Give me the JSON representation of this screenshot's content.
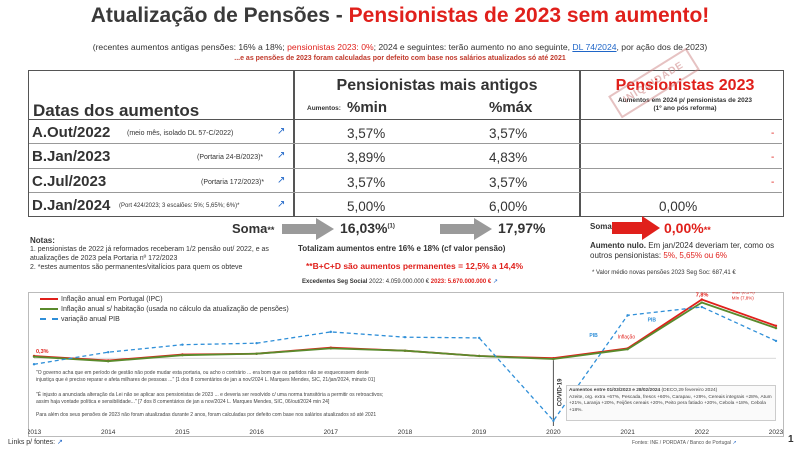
{
  "title": {
    "part1": "Atualização de Pensões - ",
    "part2": "Pensionistas de 2023 sem aumento!"
  },
  "subtitle": {
    "a": "(recentes aumentos antigas pensões: 16% a 18%; ",
    "b": "pensionistas 2023: 0%",
    "c": "; 2024 e seguintes: terão aumento no ano seguinte, ",
    "d": "DL 74/2024",
    "e": ", por ação dos de 2023)"
  },
  "subtitle2": "...e as pensões de 2023 foram calculadas por defeito com base nos salários atualizados só até 2021",
  "table": {
    "header_dates": "Datas dos aumentos",
    "header_old": "Pensionistas mais antigos",
    "header_aumentos": "Aumentos:",
    "header_min": "%min",
    "header_max": "%máx",
    "header_pens": "Pensionistas 2023",
    "header_pens_sub1": "Aumentos em 2024 p/ pensionistas de 2023",
    "header_pens_sub2": "(1º ano pós reforma)",
    "stamp": "INIQUIDADE",
    "rows": [
      {
        "label": "A.Out/2022",
        "note": "(meio mês, isolado DL 57-C/2022)",
        "min": "3,57%",
        "max": "3,57%",
        "pens": "-"
      },
      {
        "label": "B.Jan/2023",
        "note": "(Portaria 24-B/2023)*",
        "min": "3,89%",
        "max": "4,83%",
        "pens": "-"
      },
      {
        "label": "C.Jul/2023",
        "note": "(Portaria 172/2023)*",
        "min": "3,57%",
        "max": "3,57%",
        "pens": "-"
      },
      {
        "label": "D.Jan/2024",
        "note": "(Port 424/2023; 3 escalões: 5%; 5,65%; 6%)*",
        "min": "5,00%",
        "max": "6,00%",
        "pens": "0,00%"
      }
    ],
    "soma_label": "Soma",
    "soma_mark": "**",
    "soma_min": "16,03%",
    "soma_min_sup": "(1)",
    "soma_max": "17,97%",
    "soma_pens_label": "Soma",
    "soma_pens": "0,00%",
    "soma_pens_mark": "**"
  },
  "notes": {
    "title": "Notas:",
    "n1": "1. pensionistas de 2022 já reformados receberam 1/2 pensão out/ 2022, e as atualizações de 2023 pela Portaria nº 172/2023",
    "n2": "2. *estes aumentos são permanentes/vitalícios para quem os obteve"
  },
  "totals": {
    "line1": "Totalizam aumentos entre 16% e 18% (cf valor pensão)",
    "line2": "**B+C+D são aumentos permanentes = 12,5% a 14,4%",
    "exc_label": "Excedentes Seg Social",
    "exc_2022": "2022: 4.059.000.000 €",
    "exc_2023": "2023: 5.670.000.000 €"
  },
  "pens_note": {
    "bold": "Aumento nulo.",
    "rest": " Em jan/2024 deveriam ter, como os outros pensionistas: ",
    "values": "5%, 5,65% ou 6%",
    "valor_medio": "* Valor médio novas pensões 2023 Seg Soc: 687,41 €"
  },
  "chart_data": {
    "type": "line",
    "x": [
      2013,
      2014,
      2015,
      2016,
      2017,
      2018,
      2019,
      2020,
      2021,
      2022,
      2023
    ],
    "series": [
      {
        "name": "Inflação anual em Portugal (IPC)",
        "color": "#e0201b",
        "values": [
          0.3,
          -0.3,
          0.5,
          0.6,
          1.4,
          1.0,
          0.3,
          0.0,
          1.3,
          7.8,
          4.3
        ]
      },
      {
        "name": "Inflação anual s/ habitação (usada no cálculo da atualização de pensões)",
        "color": "#5a8a2c",
        "values": [
          0.2,
          -0.4,
          0.4,
          0.6,
          1.3,
          1.0,
          0.3,
          -0.1,
          1.2,
          7.4,
          4.0
        ]
      },
      {
        "name": "variação anual PIB",
        "color": "#2f8fd8",
        "values": [
          -0.8,
          0.8,
          1.8,
          2.0,
          3.5,
          2.8,
          2.7,
          -8.3,
          5.7,
          6.8,
          2.3
        ]
      }
    ],
    "ylim": [
      -9,
      8
    ],
    "years": [
      "2013",
      "2014",
      "2015",
      "2016",
      "2017",
      "2018",
      "2019",
      "2020",
      "2021",
      "2022",
      "2023"
    ],
    "labels": {
      "y2013": "0,3%",
      "y2022": "7,8%",
      "covid": "COVID-19",
      "infl_2021": "Inflação",
      "pib_2021": "PIB",
      "pib_left": "PIB",
      "max_label": "Máx (8,1%)",
      "min_label": "Mín (7,8%)"
    }
  },
  "chart_text": {
    "quote1": "\"O governo acha que em período de gestão não pode mudar esta portaria, ou acho o contrário ... era bom que os partidos não se esquecessem deste",
    "quote1b": "injustiça que é preciso reparar e afeta milhares de pessoas ...\" [1 dos 8 comentários de jan a nov/2024 L. Marques Mendes, SIC, 21/jan/2024, minuto 01]",
    "quote2": "\"É injusto a anunciada alteração da Lei não se aplicar aos pensionistas de 2023 ... e deveria ser resolvido c/ uma norma transitória a permitir os retroactivos;",
    "quote2b": "assim haja vontade política e sensibilidade...\" [7 dos 8 comentários de jan a nov/2024 L. Marques Mendes, SIC, 06/out/2024 min 24]",
    "quote3": "Para além dos seus pensões de 2023 não foram atualizadas durante 2 anos, foram calculadas por defeito com base nos salários atualizados só até 2021",
    "aumentos_title": "Aumentos entre 01/03/2023 e 28/02/2024",
    "aumentos_src": "(DECO,29 fevereiro 2024)",
    "aumentos_body": "Azeite, org. extra +67%, Pescada, frescs +60%, Carapau, +29%, Cereais integrais +28%, Atum +21%, Laranja +20%, Feijões cereais +20%, Peito pera fatiado +20%, Cebola +18%, Cebola +18%."
  },
  "footer": {
    "links": "Links p/ fontes:",
    "source": "Fontes: INE / PORDATA / Banco de Portugal",
    "page": "1"
  }
}
